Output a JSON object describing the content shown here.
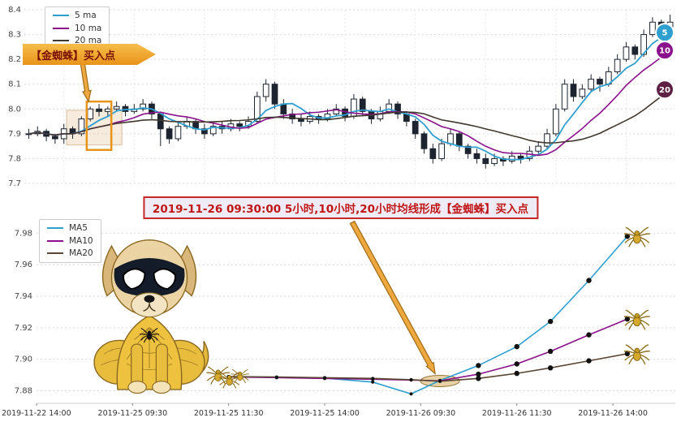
{
  "chart_data": [
    {
      "type": "candlestick",
      "title": "",
      "ylim": [
        7.7,
        8.4
      ],
      "y_ticks": [
        7.7,
        7.8,
        7.9,
        8.0,
        8.1,
        8.2,
        8.3,
        8.4
      ],
      "grid": true,
      "legend_position": "top-left",
      "legend": [
        {
          "name": "5 ma",
          "color": "#2f9fd0"
        },
        {
          "name": "10 ma",
          "color": "#8b108b"
        },
        {
          "name": "20 ma",
          "color": "#41382e"
        }
      ],
      "ma_periods": [
        5,
        10,
        20
      ],
      "end_badges": [
        {
          "label": "5",
          "color": "#2f9fd0"
        },
        {
          "label": "10",
          "color": "#8b108b"
        },
        {
          "label": "20",
          "color": "#5e2144"
        }
      ],
      "annotation": {
        "text": "【金蜘蛛】买入点",
        "shade": {
          "x": [
            4.3,
            10.6
          ],
          "y": [
            7.855,
            7.995
          ]
        },
        "highlight_rect": {
          "x": [
            6.6,
            9.4
          ],
          "y": [
            7.835,
            8.03
          ]
        },
        "arrow": {
          "from_x": 6.1,
          "from_y": 8.19,
          "to_x": 6.8,
          "to_y": 8.03
        }
      },
      "candles": [
        [
          7.9,
          7.92,
          7.88,
          7.9
        ],
        [
          7.9,
          7.93,
          7.89,
          7.91
        ],
        [
          7.91,
          7.92,
          7.87,
          7.89
        ],
        [
          7.89,
          7.9,
          7.86,
          7.88
        ],
        [
          7.88,
          7.94,
          7.86,
          7.92
        ],
        [
          7.92,
          7.93,
          7.88,
          7.9
        ],
        [
          7.9,
          7.97,
          7.89,
          7.96
        ],
        [
          7.96,
          8.01,
          7.95,
          8.0
        ],
        [
          8.0,
          8.02,
          7.97,
          7.99
        ],
        [
          7.99,
          8.01,
          7.97,
          8.0
        ],
        [
          8.0,
          8.03,
          7.99,
          8.01
        ],
        [
          8.01,
          8.02,
          7.97,
          7.99
        ],
        [
          7.99,
          8.02,
          7.98,
          8.0
        ],
        [
          8.0,
          8.04,
          7.99,
          8.02
        ],
        [
          8.02,
          8.03,
          7.96,
          7.98
        ],
        [
          7.98,
          7.99,
          7.85,
          7.92
        ],
        [
          7.92,
          7.93,
          7.86,
          7.88
        ],
        [
          7.88,
          7.95,
          7.87,
          7.93
        ],
        [
          7.93,
          7.97,
          7.92,
          7.95
        ],
        [
          7.95,
          7.96,
          7.9,
          7.92
        ],
        [
          7.92,
          7.94,
          7.88,
          7.9
        ],
        [
          7.9,
          7.95,
          7.89,
          7.93
        ],
        [
          7.93,
          7.95,
          7.9,
          7.92
        ],
        [
          7.92,
          7.96,
          7.91,
          7.94
        ],
        [
          7.94,
          7.95,
          7.91,
          7.93
        ],
        [
          7.93,
          7.97,
          7.92,
          7.95
        ],
        [
          7.95,
          8.07,
          7.94,
          8.05
        ],
        [
          8.05,
          8.12,
          8.03,
          8.1
        ],
        [
          8.1,
          8.11,
          8.0,
          8.02
        ],
        [
          8.02,
          8.04,
          7.96,
          7.98
        ],
        [
          7.98,
          8.0,
          7.94,
          7.96
        ],
        [
          7.96,
          7.98,
          7.93,
          7.95
        ],
        [
          7.95,
          7.99,
          7.94,
          7.97
        ],
        [
          7.97,
          7.98,
          7.94,
          7.96
        ],
        [
          7.96,
          8.0,
          7.95,
          7.98
        ],
        [
          7.98,
          8.02,
          7.97,
          8.0
        ],
        [
          8.0,
          8.01,
          7.95,
          7.97
        ],
        [
          7.97,
          8.06,
          7.96,
          8.04
        ],
        [
          8.04,
          8.05,
          7.97,
          7.99
        ],
        [
          7.99,
          8.0,
          7.94,
          7.96
        ],
        [
          7.96,
          8.01,
          7.95,
          7.99
        ],
        [
          7.99,
          8.04,
          7.98,
          8.02
        ],
        [
          8.02,
          8.03,
          7.96,
          7.98
        ],
        [
          7.98,
          7.99,
          7.93,
          7.95
        ],
        [
          7.95,
          7.96,
          7.88,
          7.9
        ],
        [
          7.9,
          7.91,
          7.82,
          7.84
        ],
        [
          7.84,
          7.86,
          7.78,
          7.8
        ],
        [
          7.8,
          7.88,
          7.79,
          7.86
        ],
        [
          7.86,
          7.92,
          7.85,
          7.9
        ],
        [
          7.9,
          7.91,
          7.83,
          7.85
        ],
        [
          7.85,
          7.86,
          7.8,
          7.82
        ],
        [
          7.82,
          7.84,
          7.78,
          7.8
        ],
        [
          7.8,
          7.82,
          7.76,
          7.78
        ],
        [
          7.78,
          7.82,
          7.77,
          7.8
        ],
        [
          7.8,
          7.81,
          7.77,
          7.79
        ],
        [
          7.79,
          7.83,
          7.78,
          7.81
        ],
        [
          7.81,
          7.82,
          7.78,
          7.8
        ],
        [
          7.8,
          7.85,
          7.79,
          7.83
        ],
        [
          7.83,
          7.87,
          7.82,
          7.85
        ],
        [
          7.85,
          7.92,
          7.84,
          7.9
        ],
        [
          7.9,
          8.02,
          7.89,
          8.0
        ],
        [
          8.0,
          8.12,
          7.99,
          8.1
        ],
        [
          8.1,
          8.12,
          8.03,
          8.05
        ],
        [
          8.05,
          8.1,
          8.04,
          8.08
        ],
        [
          8.08,
          8.14,
          8.07,
          8.12
        ],
        [
          8.12,
          8.13,
          8.07,
          8.1
        ],
        [
          8.1,
          8.17,
          8.09,
          8.15
        ],
        [
          8.15,
          8.22,
          8.14,
          8.2
        ],
        [
          8.2,
          8.27,
          8.19,
          8.25
        ],
        [
          8.25,
          8.26,
          8.2,
          8.22
        ],
        [
          8.22,
          8.32,
          8.21,
          8.3
        ],
        [
          8.3,
          8.37,
          8.29,
          8.35
        ],
        [
          8.35,
          8.36,
          8.3,
          8.32
        ],
        [
          8.32,
          8.38,
          8.31,
          8.35
        ]
      ]
    },
    {
      "type": "line",
      "title": "",
      "xlim": [
        0,
        6.65
      ],
      "ylim": [
        7.872,
        7.99
      ],
      "y_ticks": [
        7.88,
        7.9,
        7.92,
        7.94,
        7.96,
        7.98
      ],
      "x_tick_positions": [
        0,
        1,
        2,
        3,
        4,
        5,
        6
      ],
      "x_tick_labels": [
        "2019-11-22 14:00",
        "2019-11-25 09:30",
        "2019-11-25 11:30",
        "2019-11-25 14:00",
        "2019-11-26 09:30",
        "2019-11-26 11:30",
        "2019-11-26 14:00"
      ],
      "grid": true,
      "legend_position": "top-left",
      "series": [
        {
          "name": "MA5",
          "color": "#2f9fd0",
          "x": [
            2.0,
            2.5,
            3.0,
            3.5,
            3.9,
            4.2,
            4.6,
            5.0,
            5.35,
            5.75,
            6.15
          ],
          "y": [
            7.889,
            7.8885,
            7.888,
            7.8855,
            7.878,
            7.8865,
            7.896,
            7.908,
            7.924,
            7.95,
            7.978
          ]
        },
        {
          "name": "MA10",
          "color": "#8b108b",
          "x": [
            2.0,
            2.5,
            3.0,
            3.5,
            3.9,
            4.2,
            4.6,
            5.0,
            5.35,
            5.75,
            6.15
          ],
          "y": [
            7.8888,
            7.8883,
            7.8878,
            7.8873,
            7.8868,
            7.8863,
            7.8905,
            7.897,
            7.905,
            7.9155,
            7.9255
          ]
        },
        {
          "name": "MA20",
          "color": "#5a4632",
          "x": [
            2.0,
            2.5,
            3.0,
            3.5,
            3.9,
            4.2,
            4.6,
            5.0,
            5.35,
            5.75,
            6.15
          ],
          "y": [
            7.889,
            7.8887,
            7.8883,
            7.8878,
            7.887,
            7.886,
            7.8878,
            7.891,
            7.8945,
            7.899,
            7.9035
          ]
        }
      ],
      "annotation": {
        "text": "2019-11-26 09:30:00 5小时,10小时,20小时均线形成【金蜘蛛】买入点"
      },
      "highlight": {
        "x": 4.2,
        "y": 7.8862
      }
    }
  ]
}
